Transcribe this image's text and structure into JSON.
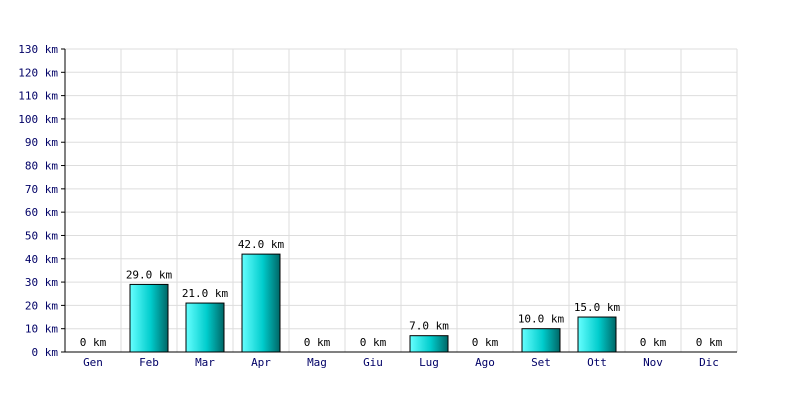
{
  "chart_data": {
    "type": "bar",
    "title": "",
    "xlabel": "",
    "ylabel": "",
    "unit": "km",
    "categories": [
      "Gen",
      "Feb",
      "Mar",
      "Apr",
      "Mag",
      "Giu",
      "Lug",
      "Ago",
      "Set",
      "Ott",
      "Nov",
      "Dic"
    ],
    "values": [
      0,
      29,
      21,
      42,
      0,
      0,
      7,
      0,
      10,
      15,
      0,
      0
    ],
    "value_labels": [
      "0 km",
      "29.0 km",
      "21.0 km",
      "42.0 km",
      "0 km",
      "0 km",
      "7.0 km",
      "0 km",
      "10.0 km",
      "15.0 km",
      "0 km",
      "0 km"
    ],
    "ylim": [
      0,
      130
    ],
    "yticks": [
      0,
      10,
      20,
      30,
      40,
      50,
      60,
      70,
      80,
      90,
      100,
      110,
      120,
      130
    ],
    "ytick_labels": [
      "0 km",
      "10 km",
      "20 km",
      "30 km",
      "40 km",
      "50 km",
      "60 km",
      "70 km",
      "80 km",
      "90 km",
      "100 km",
      "110 km",
      "120 km",
      "130 km"
    ],
    "grid": true,
    "legend": "none",
    "colors": {
      "bar_fill_light": "#66ffff",
      "bar_fill_mid": "#00cccc",
      "bar_fill_dark": "#006666",
      "bar_stroke": "#000000",
      "grid": "#dddddd",
      "axis": "#000000",
      "tick_text": "#000066",
      "label_text": "#000000"
    }
  }
}
